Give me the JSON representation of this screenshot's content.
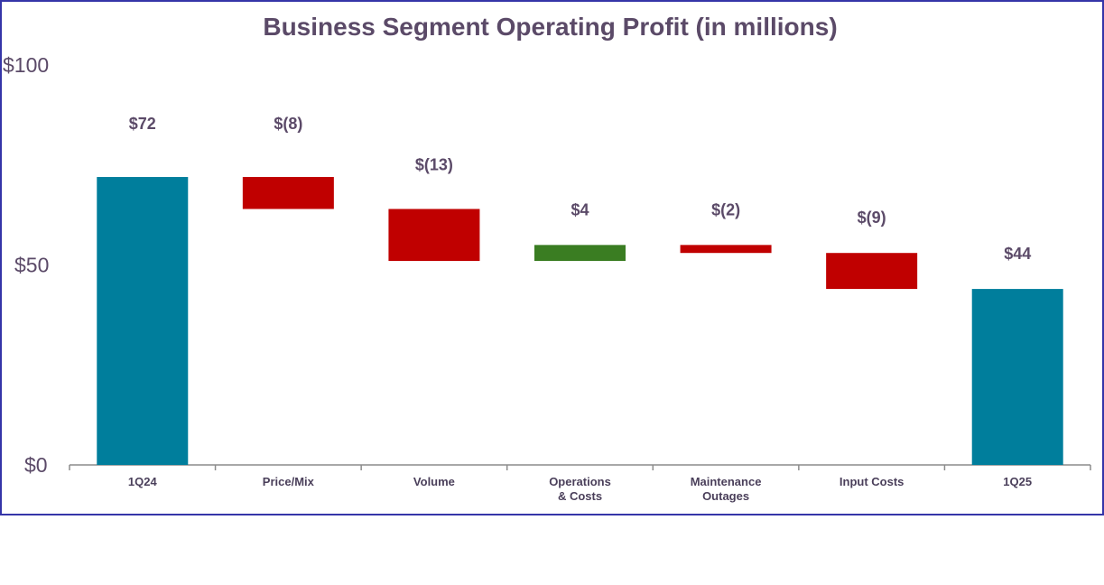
{
  "chart_data": {
    "type": "waterfall",
    "title": "Business Segment Operating Profit (in millions)",
    "categories": [
      "1Q24",
      "Price/Mix",
      "Volume",
      "Operations\n& Costs",
      "Maintenance\nOutages",
      "Input Costs",
      "1Q25"
    ],
    "values": [
      72,
      -8,
      -13,
      4,
      -2,
      -9,
      44
    ],
    "kinds": [
      "total",
      "delta",
      "delta",
      "delta",
      "delta",
      "delta",
      "total"
    ],
    "data_labels": [
      "$72",
      "$(8)",
      "$(13)",
      "$4",
      "$(2)",
      "$(9)",
      "$44"
    ],
    "ylim": [
      0,
      100
    ],
    "y_ticks": [
      0,
      50,
      100
    ],
    "y_tick_labels": [
      "$0",
      "$50",
      "$100"
    ],
    "grid": false,
    "legend": "none",
    "colors": {
      "total": "#007e9c",
      "decrease": "#c00000",
      "increase": "#3a7d22"
    }
  }
}
